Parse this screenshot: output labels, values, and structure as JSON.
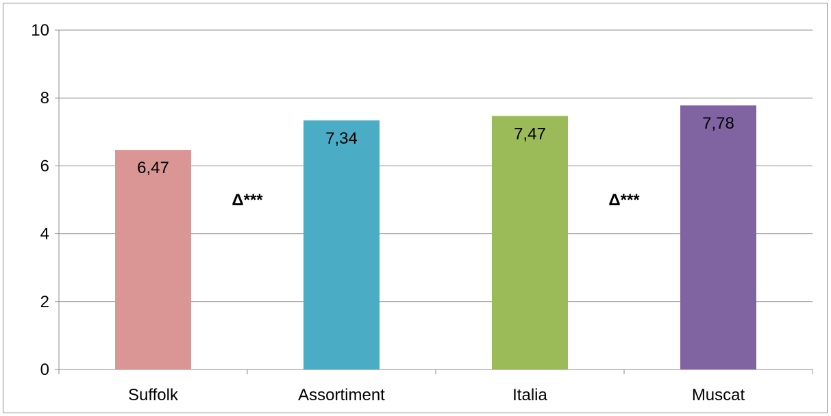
{
  "chart_data": {
    "type": "bar",
    "categories": [
      "Suffolk",
      "Assortiment",
      "Italia",
      "Muscat"
    ],
    "values": [
      6.47,
      7.34,
      7.47,
      7.78
    ],
    "data_labels": [
      "6,47",
      "7,34",
      "7,47",
      "7,78"
    ],
    "colors": [
      "#d99694",
      "#4bacc6",
      "#9bbb59",
      "#8064a2"
    ],
    "ylim": [
      0,
      10
    ],
    "yticks": [
      0,
      2,
      4,
      6,
      8,
      10
    ],
    "ytick_labels": [
      "0",
      "2",
      "4",
      "6",
      "8",
      "10"
    ],
    "grid": true,
    "legend": "none",
    "title": "",
    "xlabel": "",
    "ylabel": "",
    "annotations": [
      {
        "text": "Δ***",
        "between": [
          "Suffolk",
          "Assortiment"
        ],
        "y": 5.0
      },
      {
        "text": "Δ***",
        "between": [
          "Italia",
          "Muscat"
        ],
        "y": 5.0
      }
    ]
  }
}
